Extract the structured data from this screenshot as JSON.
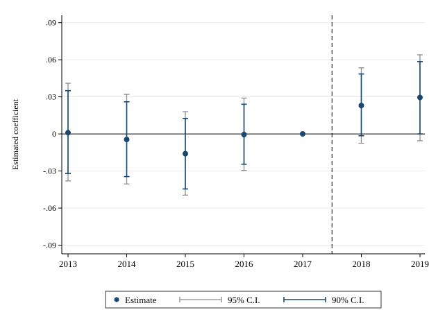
{
  "chart_data": {
    "type": "scatter",
    "title": "",
    "xlabel": "",
    "ylabel": "Estimated coefficient",
    "x": [
      "2013",
      "2014",
      "2015",
      "2016",
      "2017",
      "2018",
      "2019"
    ],
    "estimates": [
      0.001,
      -0.0045,
      -0.016,
      -0.0005,
      0.0,
      0.023,
      0.0295
    ],
    "ci95": [
      [
        -0.038,
        0.041
      ],
      [
        -0.0405,
        0.032
      ],
      [
        -0.0495,
        0.018
      ],
      [
        -0.0295,
        0.029
      ],
      [
        0.0,
        0.0
      ],
      [
        -0.0075,
        0.0535
      ],
      [
        -0.0055,
        0.064
      ]
    ],
    "ci90": [
      [
        -0.032,
        0.035
      ],
      [
        -0.0345,
        0.026
      ],
      [
        -0.0445,
        0.0125
      ],
      [
        -0.0245,
        0.024
      ],
      [
        0.0,
        0.0
      ],
      [
        -0.0015,
        0.0485
      ],
      [
        0.0,
        0.0585
      ]
    ],
    "yticks": [
      ".09",
      ".06",
      ".03",
      "0",
      "-.03",
      "-.06",
      "-.09"
    ],
    "ytick_values": [
      0.09,
      0.06,
      0.03,
      0,
      -0.03,
      -0.06,
      -0.09
    ],
    "ylim": [
      -0.097,
      0.096
    ],
    "reference_line_y": 0,
    "vertical_dashed_line_x": 2017.5,
    "grid": true,
    "legend": {
      "placement": "bottom",
      "items": [
        "Estimate",
        "95% C.I.",
        "90% C.I."
      ]
    },
    "colors": {
      "estimate": "#1a476f",
      "ci90": "#1a476f",
      "ci95": "#8c8c8c",
      "grid": "#eaeaea"
    }
  }
}
